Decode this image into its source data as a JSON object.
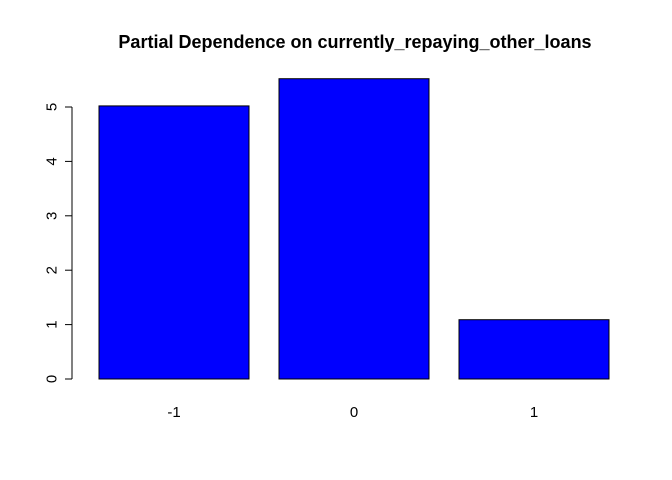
{
  "chart_data": {
    "type": "bar",
    "title": "Partial Dependence on currently_repaying_other_loans",
    "xlabel": "",
    "ylabel": "",
    "categories": [
      "-1",
      "0",
      "1"
    ],
    "values": [
      5.02,
      5.52,
      1.09
    ],
    "ylim": [
      0,
      5.52
    ],
    "y_ticks": [
      0,
      1,
      2,
      3,
      4,
      5
    ],
    "y_tick_labels": [
      "0",
      "1",
      "2",
      "3",
      "4",
      "5"
    ],
    "bar_color": "#0000ff",
    "grid": false,
    "legend": "none"
  }
}
